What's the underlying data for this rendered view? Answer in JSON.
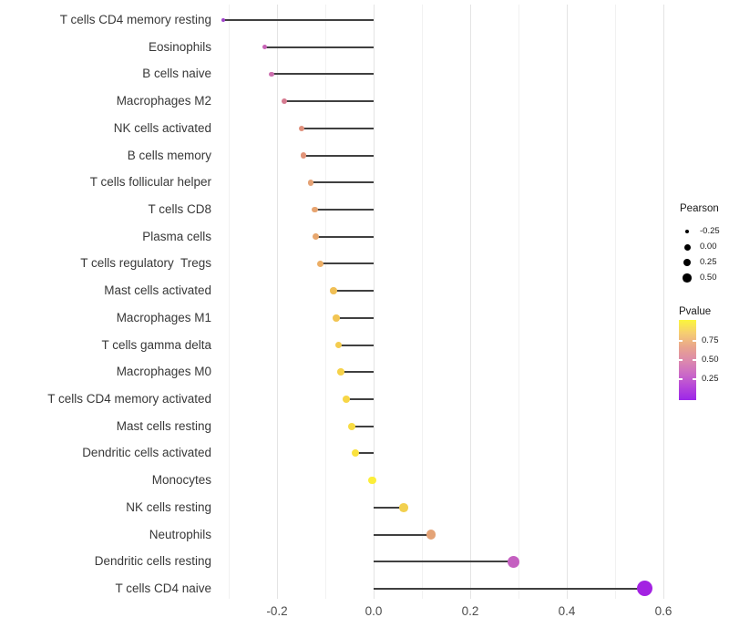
{
  "chart_data": {
    "type": "scatter",
    "subtype": "lollipop",
    "orientation": "horizontal",
    "title": "",
    "xlabel": "",
    "ylabel": "",
    "xlim": [
      -0.35,
      0.65
    ],
    "grid": "vertical-only",
    "x_ticks": [
      {
        "value": -0.2,
        "label": "-0.2"
      },
      {
        "value": 0.0,
        "label": "0.0"
      },
      {
        "value": 0.2,
        "label": "0.2"
      },
      {
        "value": 0.4,
        "label": "0.4"
      },
      {
        "value": 0.6,
        "label": "0.6"
      }
    ],
    "x_minor_gridlines": [
      -0.3,
      -0.1,
      0.1,
      0.3,
      0.5
    ],
    "rows": [
      {
        "label": "T cells CD4 memory resting",
        "pearson": -0.312,
        "color": "#a144ca"
      },
      {
        "label": "Eosinophils",
        "pearson": -0.225,
        "color": "#c763b6"
      },
      {
        "label": "B cells naive",
        "pearson": -0.211,
        "color": "#cd70af"
      },
      {
        "label": "Macrophages M2",
        "pearson": -0.185,
        "color": "#d57a90"
      },
      {
        "label": "NK cells activated",
        "pearson": -0.149,
        "color": "#e0907c"
      },
      {
        "label": "B cells memory",
        "pearson": -0.145,
        "color": "#e29479"
      },
      {
        "label": "T cells follicular helper",
        "pearson": -0.13,
        "color": "#e5a275"
      },
      {
        "label": "T cells CD8",
        "pearson": -0.121,
        "color": "#e7a470"
      },
      {
        "label": "Plasma cells",
        "pearson": -0.119,
        "color": "#e8a76e"
      },
      {
        "label": "T cells regulatory  Tregs",
        "pearson": -0.111,
        "color": "#ecae66"
      },
      {
        "label": "Mast cells activated",
        "pearson": -0.083,
        "color": "#f0bf55"
      },
      {
        "label": "Macrophages M1",
        "pearson": -0.077,
        "color": "#f2c553"
      },
      {
        "label": "T cells gamma delta",
        "pearson": -0.073,
        "color": "#f4cc4e"
      },
      {
        "label": "Macrophages M0",
        "pearson": -0.068,
        "color": "#f6d24a"
      },
      {
        "label": "T cells CD4 memory activated",
        "pearson": -0.057,
        "color": "#f7d647"
      },
      {
        "label": "Mast cells resting",
        "pearson": -0.045,
        "color": "#f8dc44"
      },
      {
        "label": "Dendritic cells activated",
        "pearson": -0.038,
        "color": "#fae23f"
      },
      {
        "label": "Monocytes",
        "pearson": -0.003,
        "color": "#fcee3a"
      },
      {
        "label": "NK cells resting",
        "pearson": 0.062,
        "color": "#f2d04f"
      },
      {
        "label": "Neutrophils",
        "pearson": 0.119,
        "color": "#e4a377"
      },
      {
        "label": "Dendritic cells resting",
        "pearson": 0.29,
        "color": "#c45fc0"
      },
      {
        "label": "T cells CD4 naive",
        "pearson": 0.562,
        "color": "#a322e2"
      }
    ],
    "legends": {
      "size": {
        "title": "Pearson",
        "items": [
          {
            "label": "-0.25",
            "value": -0.25
          },
          {
            "label": "0.00",
            "value": 0.0
          },
          {
            "label": "0.25",
            "value": 0.25
          },
          {
            "label": "0.50",
            "value": 0.5
          }
        ]
      },
      "color": {
        "title": "Pvalue",
        "ticks": [
          {
            "label": "0.75"
          },
          {
            "label": "0.50"
          },
          {
            "label": "0.25"
          }
        ],
        "gradient_top_to_bottom": [
          "#fbf63c",
          "#f6cd72",
          "#e9a58c",
          "#dd8bab",
          "#cc6cc5",
          "#b647d9",
          "#9c27e8"
        ]
      }
    },
    "colors": {
      "segment": "#404040",
      "legend_dot": "#000000",
      "grid_major": "#e4e4e4",
      "grid_minor": "#f1f1f1",
      "axis_text": "#4d4d4d",
      "label_text": "#383838"
    }
  }
}
